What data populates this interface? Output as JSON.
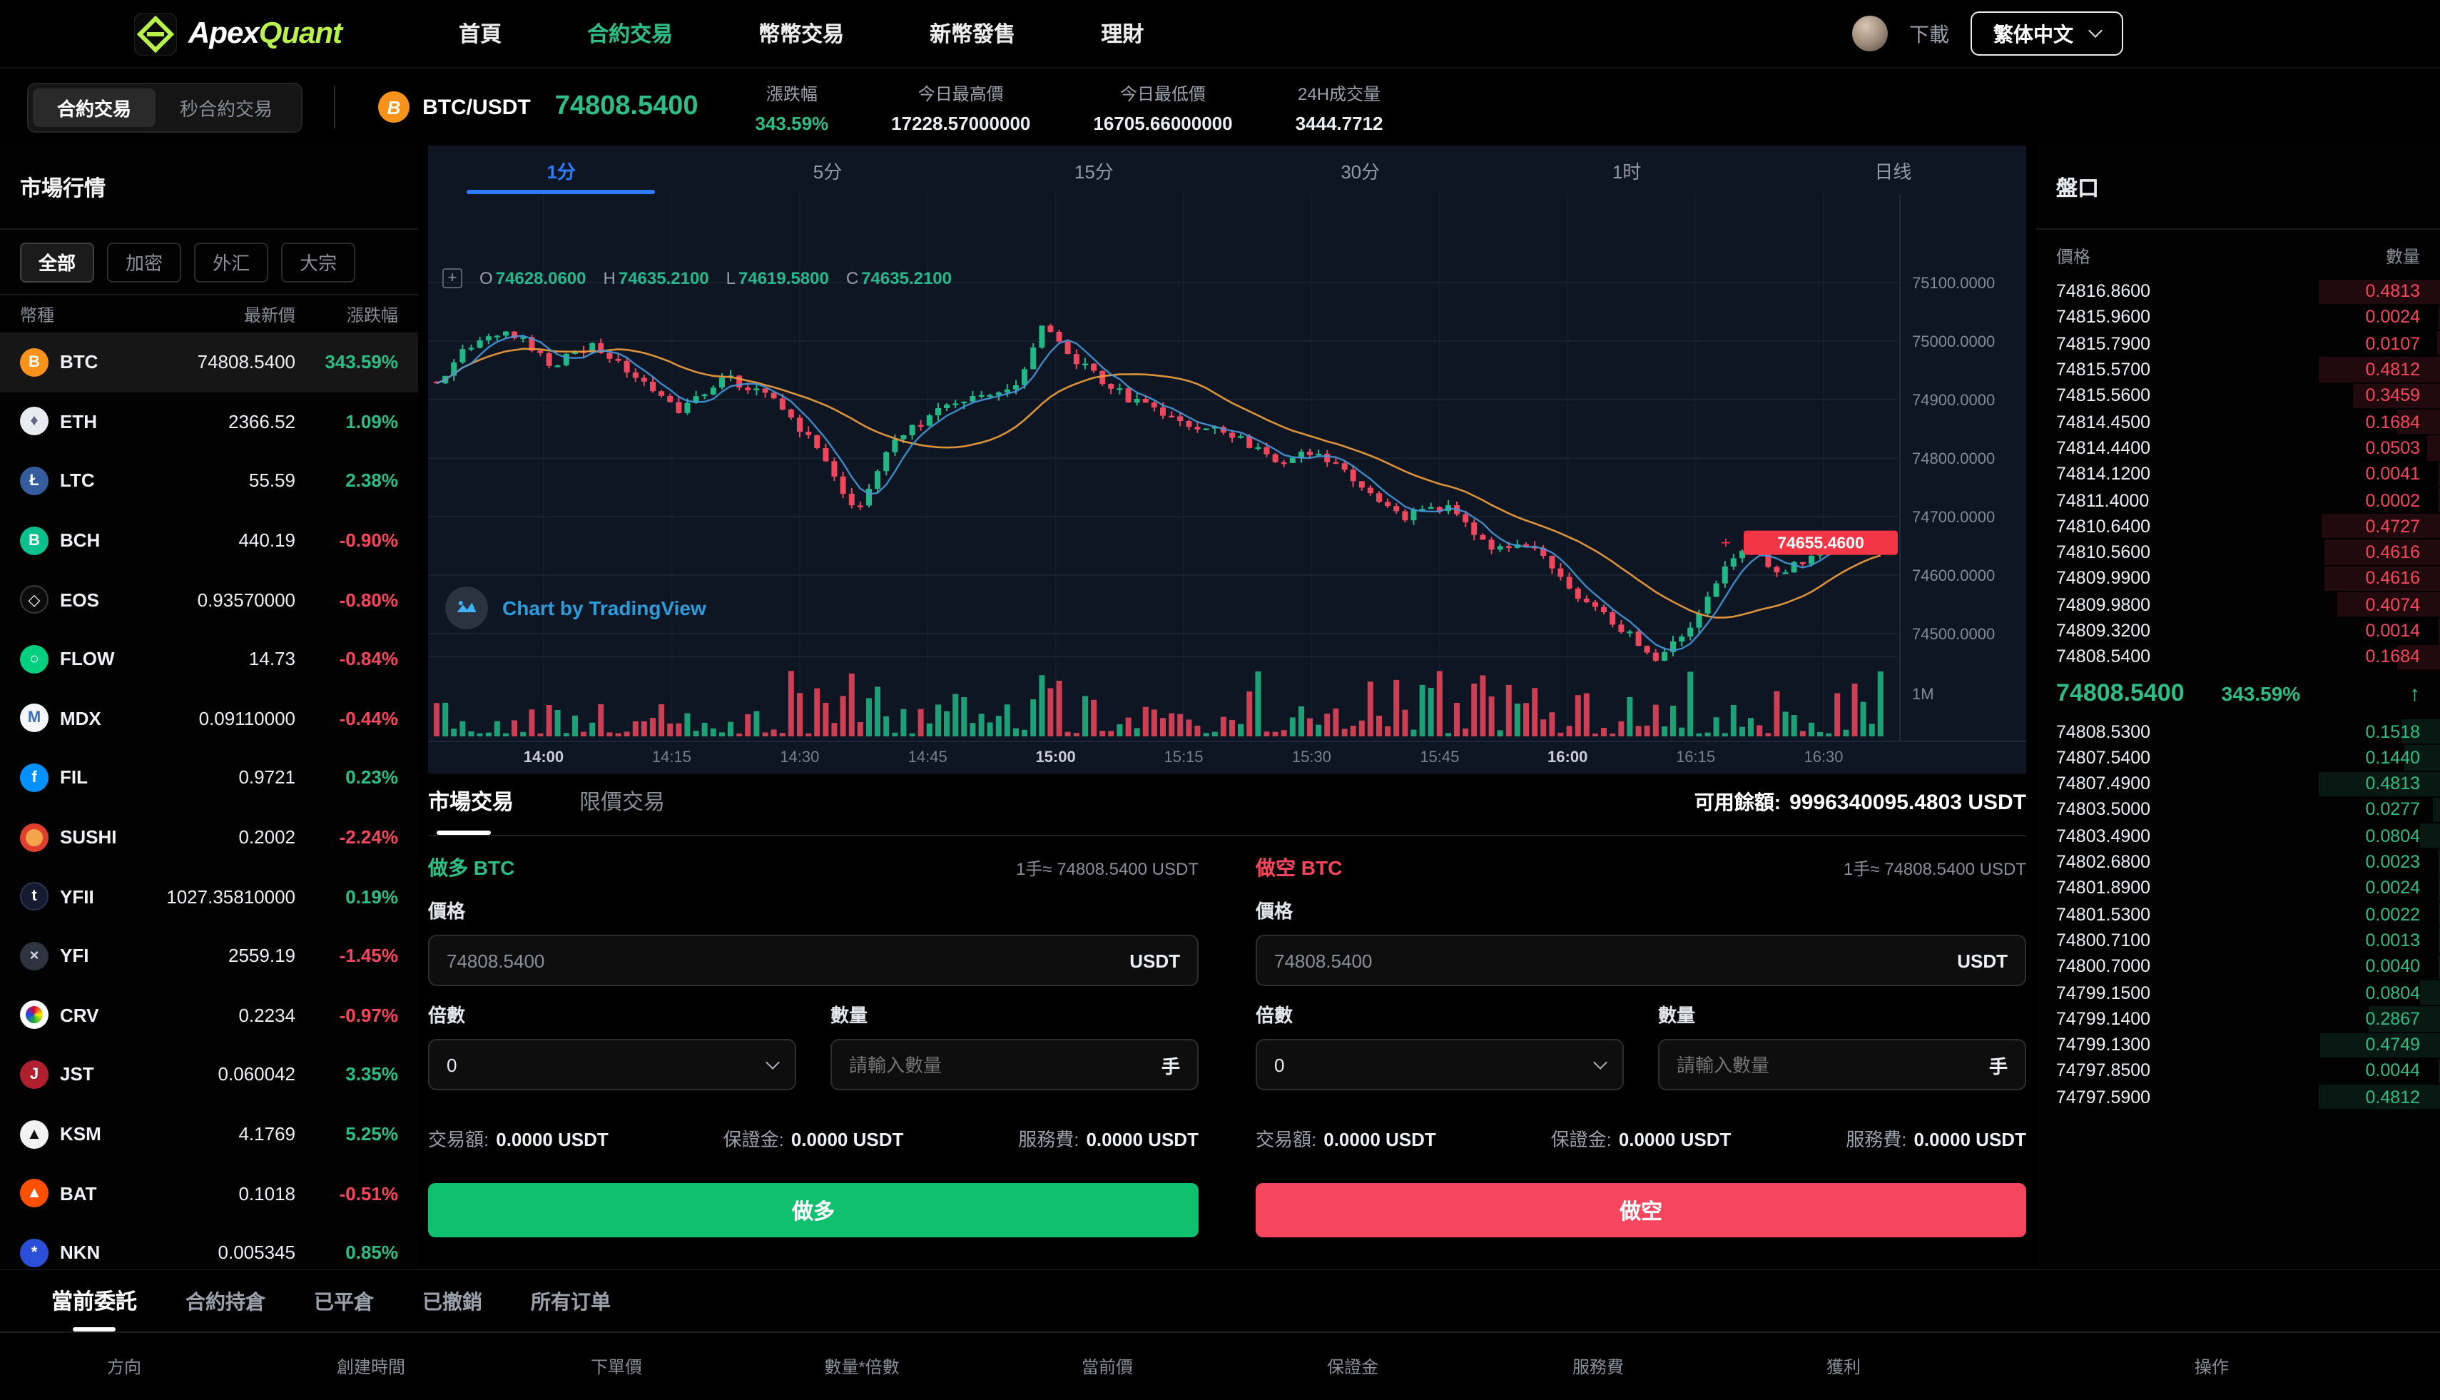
{
  "colors": {
    "up": "#2ebd85",
    "down": "#f5465d",
    "accent_lime": "#b8f24b",
    "tab_blue": "#2e7bff",
    "buy_btn": "#0fc06f",
    "sell_btn": "#f5465d",
    "last_price_tag_bg": "#f23645"
  },
  "nav": {
    "logo": {
      "apex": "Apex",
      "quant": "Quant"
    },
    "items": [
      {
        "label": "首頁",
        "active": false
      },
      {
        "label": "合約交易",
        "active": true
      },
      {
        "label": "幣幣交易",
        "active": false
      },
      {
        "label": "新幣發售",
        "active": false
      },
      {
        "label": "理財",
        "active": false
      }
    ],
    "download": "下載",
    "language": "繁体中文"
  },
  "subheader": {
    "mode_tabs": [
      {
        "label": "合約交易",
        "active": true
      },
      {
        "label": "秒合約交易",
        "active": false
      }
    ],
    "pair": "BTC/USDT",
    "pair_icon": "B",
    "last_price": "74808.5400",
    "stats": [
      {
        "label": "漲跌幅",
        "value": "343.59%",
        "dir": "up"
      },
      {
        "label": "今日最高價",
        "value": "17228.57000000",
        "dir": ""
      },
      {
        "label": "今日最低價",
        "value": "16705.66000000",
        "dir": ""
      },
      {
        "label": "24H成交量",
        "value": "3444.7712",
        "dir": ""
      }
    ]
  },
  "market": {
    "title": "市場行情",
    "filters": [
      {
        "label": "全部",
        "active": true
      },
      {
        "label": "加密",
        "active": false
      },
      {
        "label": "外汇",
        "active": false
      },
      {
        "label": "大宗",
        "active": false
      }
    ],
    "columns": [
      "幣種",
      "最新價",
      "漲跌幅"
    ],
    "coins": [
      {
        "symbol": "BTC",
        "price": "74808.5400",
        "change": "343.59%",
        "dir": "up",
        "selected": true,
        "icon": {
          "bg": "#f7931a",
          "glyph": "B",
          "color": "#ffffff"
        }
      },
      {
        "symbol": "ETH",
        "price": "2366.52",
        "change": "1.09%",
        "dir": "up",
        "icon": {
          "bg": "#e9ebf1",
          "glyph": "♦",
          "color": "#5c6980"
        }
      },
      {
        "symbol": "LTC",
        "price": "55.59",
        "change": "2.38%",
        "dir": "up",
        "icon": {
          "bg": "#345d9d",
          "glyph": "Ł",
          "color": "#ffffff"
        }
      },
      {
        "symbol": "BCH",
        "price": "440.19",
        "change": "-0.90%",
        "dir": "down",
        "icon": {
          "bg": "#0ac18e",
          "glyph": "B",
          "color": "#ffffff"
        }
      },
      {
        "symbol": "EOS",
        "price": "0.93570000",
        "change": "-0.80%",
        "dir": "down",
        "icon": {
          "bg": "#0b0b0b",
          "glyph": "◇",
          "color": "#ffffff",
          "border": "#3a3a3a"
        }
      },
      {
        "symbol": "FLOW",
        "price": "14.73",
        "change": "-0.84%",
        "dir": "down",
        "icon": {
          "bg": "#00cf7f",
          "glyph": "○",
          "color": "#ffffff"
        }
      },
      {
        "symbol": "MDX",
        "price": "0.09110000",
        "change": "-0.44%",
        "dir": "down",
        "icon": {
          "bg": "#f4f6fa",
          "glyph": "M",
          "color": "#3b6fc4"
        }
      },
      {
        "symbol": "FIL",
        "price": "0.9721",
        "change": "0.23%",
        "dir": "up",
        "icon": {
          "bg": "#0090ff",
          "glyph": "f",
          "color": "#ffffff"
        }
      },
      {
        "symbol": "SUSHI",
        "price": "0.2002",
        "change": "-2.24%",
        "dir": "down",
        "icon": {
          "bg": "#e2402f",
          "glyph": "",
          "color": "#ffffff",
          "innerBg": "#f2a54a"
        }
      },
      {
        "symbol": "YFII",
        "price": "1027.35810000",
        "change": "0.19%",
        "dir": "up",
        "icon": {
          "bg": "#151b30",
          "glyph": "t",
          "color": "#ffffff",
          "border": "#2c3550"
        }
      },
      {
        "symbol": "YFI",
        "price": "2559.19",
        "change": "-1.45%",
        "dir": "down",
        "icon": {
          "bg": "#2f3540",
          "glyph": "×",
          "color": "#cfd3da"
        }
      },
      {
        "symbol": "CRV",
        "price": "0.2234",
        "change": "-0.97%",
        "dir": "down",
        "icon": {
          "bg": "#ffffff",
          "glyph": "",
          "color": "#000000",
          "innerBg": "conic-gradient(#e4022d,#f7ef05,#1fae34,#1c46f5,#e4022d)"
        }
      },
      {
        "symbol": "JST",
        "price": "0.060042",
        "change": "3.35%",
        "dir": "up",
        "icon": {
          "bg": "#b01f2e",
          "glyph": "J",
          "color": "#ffffff"
        }
      },
      {
        "symbol": "KSM",
        "price": "4.1769",
        "change": "5.25%",
        "dir": "up",
        "icon": {
          "bg": "#f2f2f2",
          "glyph": "▲",
          "color": "#111111"
        }
      },
      {
        "symbol": "BAT",
        "price": "0.1018",
        "change": "-0.51%",
        "dir": "down",
        "icon": {
          "bg": "#ff5000",
          "glyph": "▲",
          "color": "#ffffff"
        }
      },
      {
        "symbol": "NKN",
        "price": "0.005345",
        "change": "0.85%",
        "dir": "up",
        "icon": {
          "bg": "#2b4fd8",
          "glyph": "*",
          "color": "#ffffff"
        }
      }
    ]
  },
  "chart": {
    "timeframes": [
      {
        "label": "1分",
        "active": true
      },
      {
        "label": "5分",
        "active": false
      },
      {
        "label": "15分",
        "active": false
      },
      {
        "label": "30分",
        "active": false
      },
      {
        "label": "1时",
        "active": false
      },
      {
        "label": "日线",
        "active": false
      }
    ],
    "legend_icon": "+",
    "ohlc": [
      {
        "k": "O",
        "v": "74628.0600"
      },
      {
        "k": "H",
        "v": "74635.2100"
      },
      {
        "k": "L",
        "v": "74619.5800"
      },
      {
        "k": "C",
        "v": "74635.2100"
      }
    ],
    "price_axis": [
      "75100.0000",
      "75000.0000",
      "74900.0000",
      "74800.0000",
      "74700.0000",
      "74600.0000",
      "74500.0000"
    ],
    "last_price_tag": "74655.4600",
    "volume_axis_label": "1M",
    "time_axis": [
      "14:00",
      "14:15",
      "14:30",
      "14:45",
      "15:00",
      "15:15",
      "15:30",
      "15:45",
      "16:00",
      "16:15",
      "16:30"
    ],
    "attribution": "Chart by TradingView"
  },
  "orderbook": {
    "title": "盤口",
    "columns": {
      "price": "價格",
      "qty": "數量"
    },
    "asks": [
      [
        "74816.8600",
        "0.4813"
      ],
      [
        "74815.9600",
        "0.0024"
      ],
      [
        "74815.7900",
        "0.0107"
      ],
      [
        "74815.5700",
        "0.4812"
      ],
      [
        "74815.5600",
        "0.3459"
      ],
      [
        "74814.4500",
        "0.1684"
      ],
      [
        "74814.4400",
        "0.0503"
      ],
      [
        "74814.1200",
        "0.0041"
      ],
      [
        "74811.4000",
        "0.0002"
      ],
      [
        "74810.6400",
        "0.4727"
      ],
      [
        "74810.5600",
        "0.4616"
      ],
      [
        "74809.9900",
        "0.4616"
      ],
      [
        "74809.9800",
        "0.4074"
      ],
      [
        "74809.3200",
        "0.0014"
      ],
      [
        "74808.5400",
        "0.1684"
      ]
    ],
    "mid": {
      "price": "74808.5400",
      "change": "343.59%",
      "arrow": "↑"
    },
    "bids": [
      [
        "74808.5300",
        "0.1518"
      ],
      [
        "74807.5400",
        "0.1440"
      ],
      [
        "74807.4900",
        "0.4813"
      ],
      [
        "74803.5000",
        "0.0277"
      ],
      [
        "74803.4900",
        "0.0804"
      ],
      [
        "74802.6800",
        "0.0023"
      ],
      [
        "74801.8900",
        "0.0024"
      ],
      [
        "74801.5300",
        "0.0022"
      ],
      [
        "74800.7100",
        "0.0013"
      ],
      [
        "74800.7000",
        "0.0040"
      ],
      [
        "74799.1500",
        "0.0804"
      ],
      [
        "74799.1400",
        "0.2867"
      ],
      [
        "74799.1300",
        "0.4749"
      ],
      [
        "74797.8500",
        "0.0044"
      ],
      [
        "74797.5900",
        "0.4812"
      ]
    ]
  },
  "trade": {
    "tabs": [
      {
        "label": "市場交易",
        "active": true
      },
      {
        "label": "限價交易",
        "active": false
      }
    ],
    "balance_label": "可用餘額:",
    "balance_value": "9996340095.4803 USDT",
    "long": {
      "title": "做多 BTC",
      "unit": "1手≈ 74808.5400 USDT",
      "price_label": "價格",
      "price_value": "74808.5400",
      "price_suffix": "USDT",
      "lev_label": "倍數",
      "lev_value": "0",
      "qty_label": "數量",
      "qty_placeholder": "請輸入數量",
      "qty_suffix": "手",
      "fees": [
        {
          "label": "交易額:",
          "value": "0.0000 USDT"
        },
        {
          "label": "保證金:",
          "value": "0.0000 USDT"
        },
        {
          "label": "服務費:",
          "value": "0.0000 USDT"
        }
      ],
      "button": "做多"
    },
    "short": {
      "title": "做空 BTC",
      "unit": "1手≈ 74808.5400 USDT",
      "price_label": "價格",
      "price_value": "74808.5400",
      "price_suffix": "USDT",
      "lev_label": "倍數",
      "lev_value": "0",
      "qty_label": "數量",
      "qty_placeholder": "請輸入數量",
      "qty_suffix": "手",
      "fees": [
        {
          "label": "交易額:",
          "value": "0.0000 USDT"
        },
        {
          "label": "保證金:",
          "value": "0.0000 USDT"
        },
        {
          "label": "服務費:",
          "value": "0.0000 USDT"
        }
      ],
      "button": "做空"
    }
  },
  "orders": {
    "tabs": [
      {
        "label": "當前委託",
        "active": true
      },
      {
        "label": "合約持倉",
        "active": false
      },
      {
        "label": "已平倉",
        "active": false
      },
      {
        "label": "已撤銷",
        "active": false
      },
      {
        "label": "所有订单",
        "active": false
      }
    ],
    "columns": [
      "方向",
      "創建時間",
      "下單價",
      "數量*倍數",
      "當前價",
      "保證金",
      "服務費",
      "獲利",
      "操作"
    ]
  }
}
